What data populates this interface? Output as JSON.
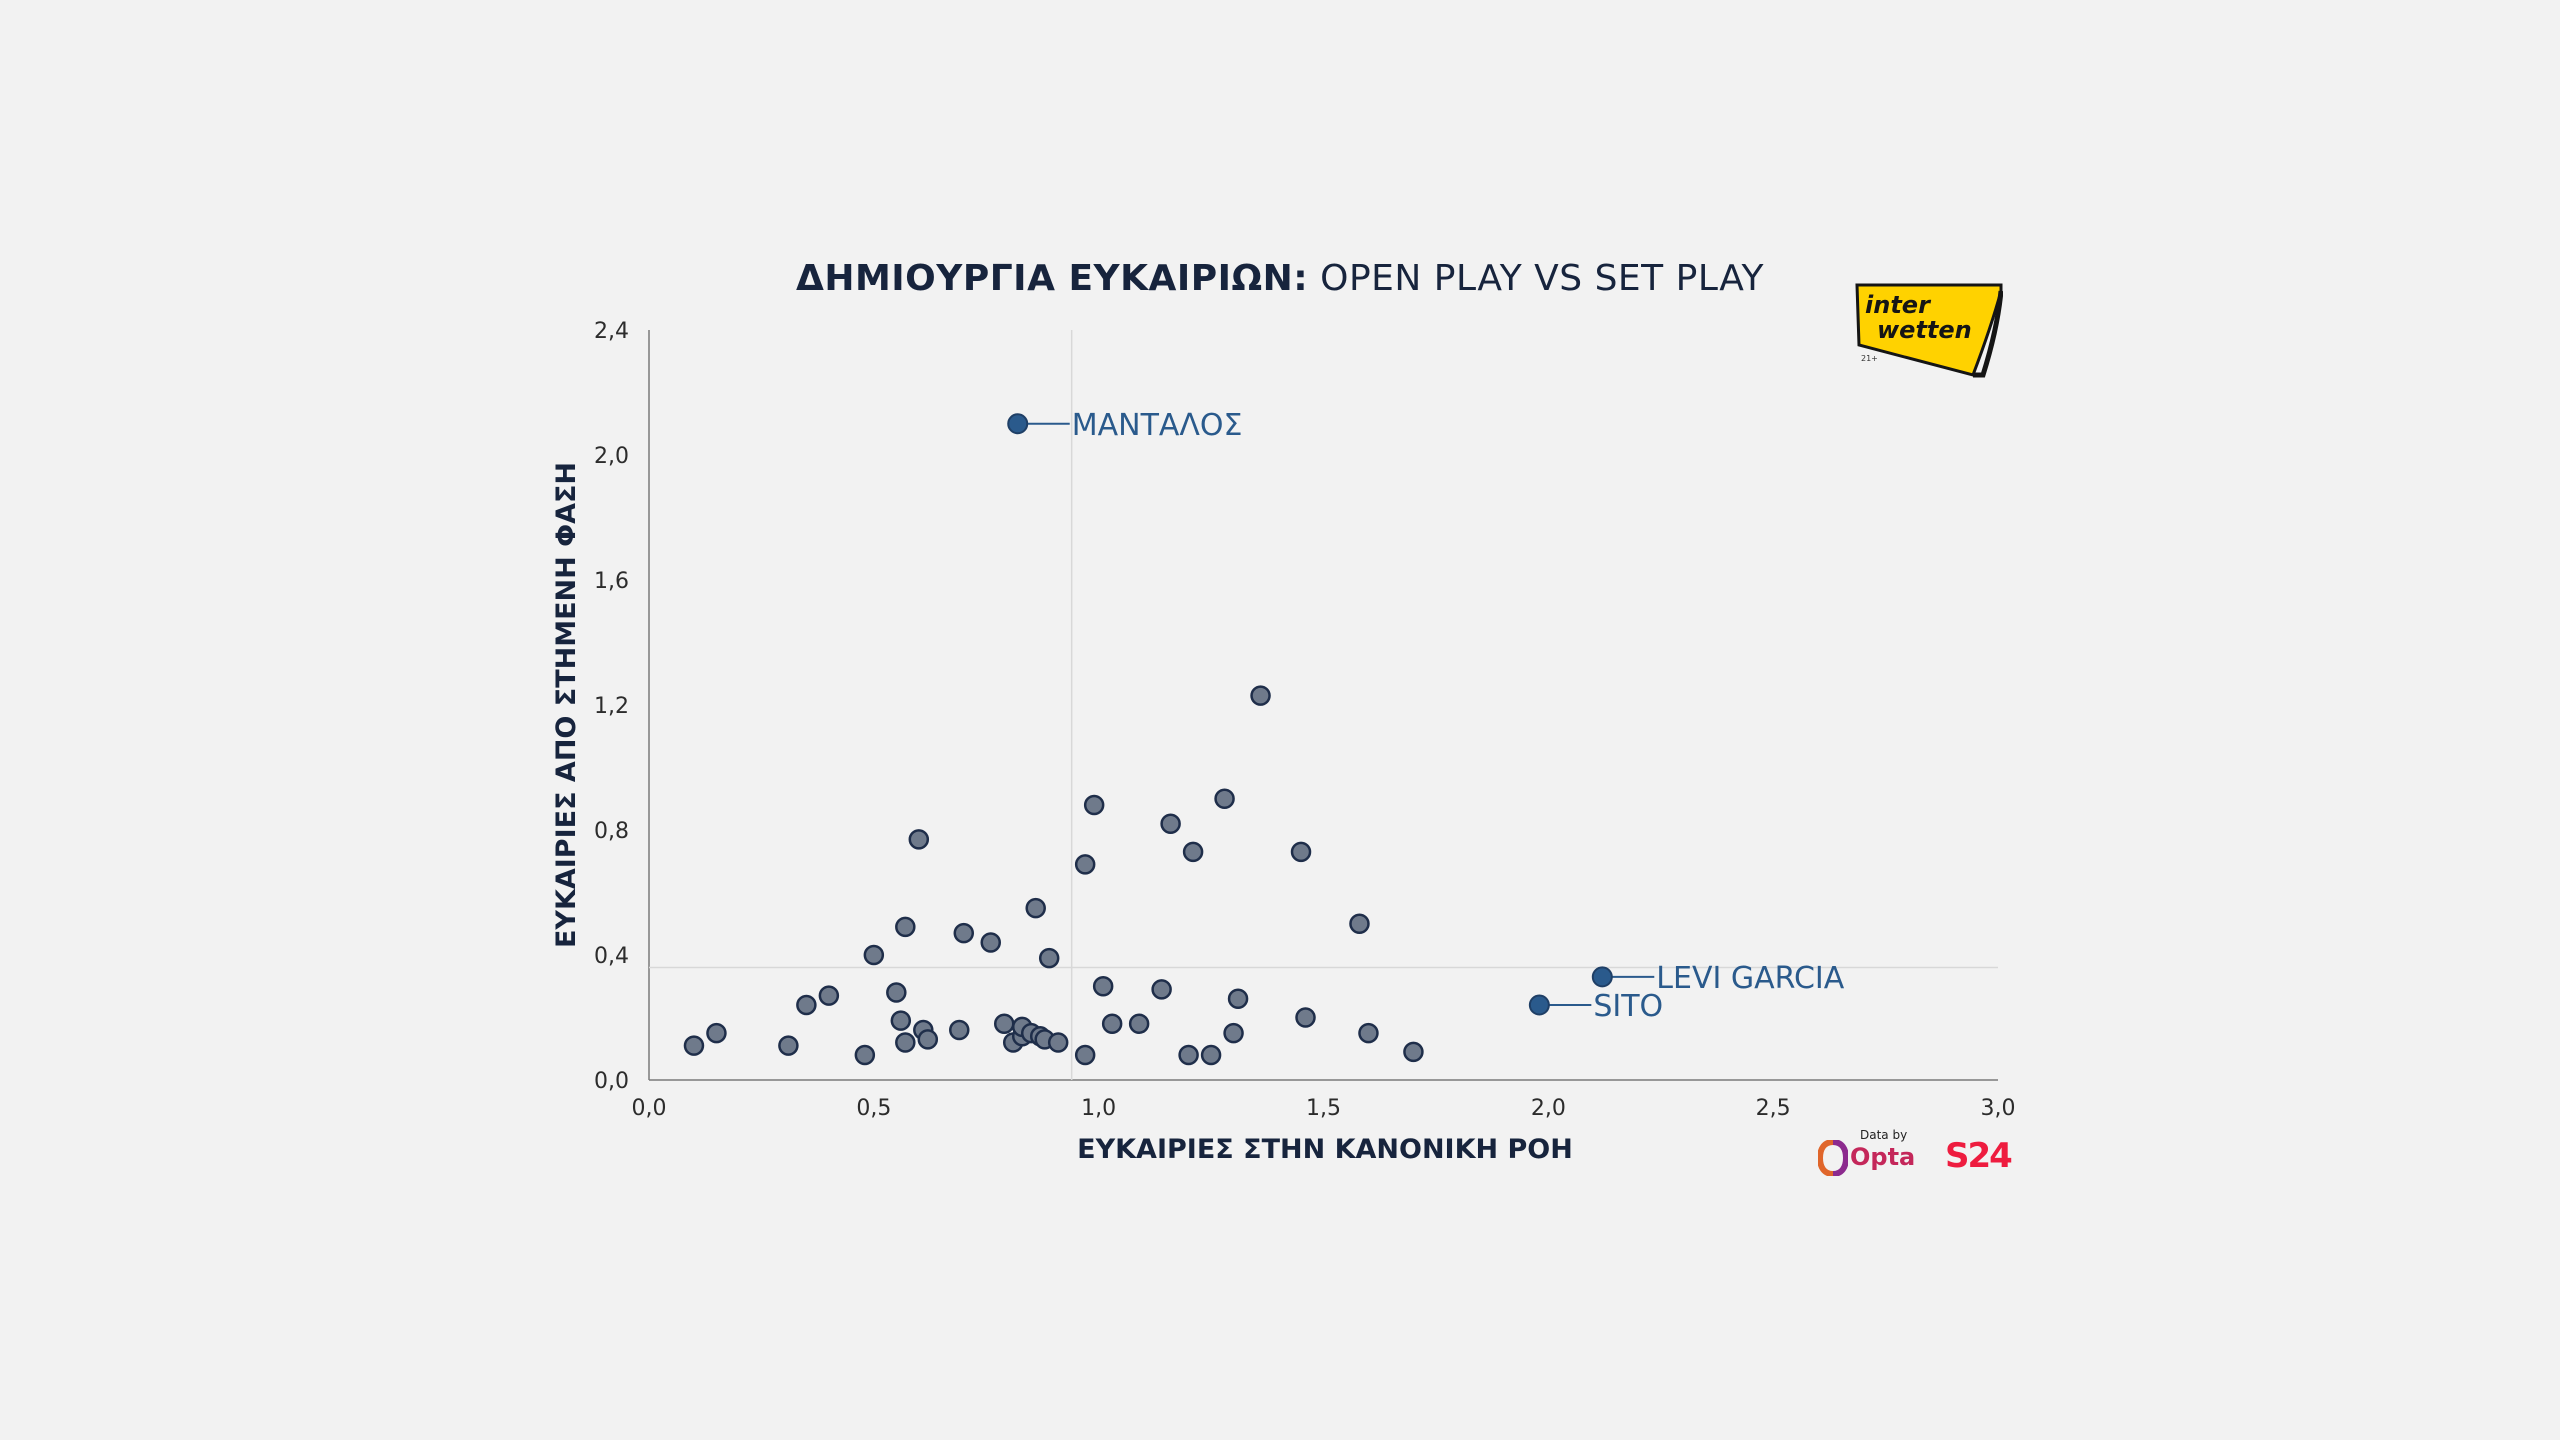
{
  "title": {
    "bold_part": "ΔΗΜΙΟΥΡΓΙΑ ΕΥΚΑΙΡΙΩΝ:",
    "normal_part": "OPEN PLAY VS SET PLAY"
  },
  "brand": {
    "logo_line1": "inter",
    "logo_line2": "wetten",
    "logo_age": "21+",
    "data_by": "Data by",
    "opta": "Opta",
    "s24": "S24"
  },
  "colors": {
    "background": "#f2f2f2",
    "point_fill": "#6f7a8b",
    "point_stroke": "#1f2e4a",
    "highlight": "#2a5a8c",
    "title": "#17243d",
    "ref_line": "#d8d8d8"
  },
  "chart_data": {
    "type": "scatter",
    "title": "ΔΗΜΙΟΥΡΓΙΑ ΕΥΚΑΙΡΙΩΝ: OPEN PLAY VS SET PLAY",
    "xlabel": "ΕΥΚΑΙΡΙΕΣ ΣΤΗΝ ΚΑΝΟΝΙΚΗ ΡΟΗ",
    "ylabel": "ΕΥΚΑΙΡΙΕΣ ΑΠΟ ΣΤΗΜΕΝΗ ΦΑΣΗ",
    "xlim": [
      0,
      3.0
    ],
    "ylim": [
      0,
      2.4
    ],
    "x_ticks": [
      "0,0",
      "0,5",
      "1,0",
      "1,5",
      "2,0",
      "2,5",
      "3,0"
    ],
    "y_ticks": [
      "0,0",
      "0,4",
      "0,8",
      "1,2",
      "1,6",
      "2,0",
      "2,4"
    ],
    "x_tick_values": [
      0,
      0.5,
      1.0,
      1.5,
      2.0,
      2.5,
      3.0
    ],
    "y_tick_values": [
      0,
      0.4,
      0.8,
      1.2,
      1.6,
      2.0,
      2.4
    ],
    "reference_lines": {
      "x": 0.94,
      "y": 0.36
    },
    "grid": false,
    "points": [
      [
        0.1,
        0.11
      ],
      [
        0.15,
        0.15
      ],
      [
        0.31,
        0.11
      ],
      [
        0.35,
        0.24
      ],
      [
        0.4,
        0.27
      ],
      [
        0.48,
        0.08
      ],
      [
        0.5,
        0.4
      ],
      [
        0.55,
        0.28
      ],
      [
        0.56,
        0.19
      ],
      [
        0.57,
        0.12
      ],
      [
        0.57,
        0.49
      ],
      [
        0.6,
        0.77
      ],
      [
        0.61,
        0.16
      ],
      [
        0.62,
        0.13
      ],
      [
        0.69,
        0.16
      ],
      [
        0.7,
        0.47
      ],
      [
        0.76,
        0.44
      ],
      [
        0.79,
        0.18
      ],
      [
        0.81,
        0.12
      ],
      [
        0.83,
        0.14
      ],
      [
        0.83,
        0.17
      ],
      [
        0.85,
        0.15
      ],
      [
        0.86,
        0.55
      ],
      [
        0.87,
        0.14
      ],
      [
        0.88,
        0.13
      ],
      [
        0.89,
        0.39
      ],
      [
        0.91,
        0.12
      ],
      [
        0.97,
        0.08
      ],
      [
        0.97,
        0.69
      ],
      [
        0.99,
        0.88
      ],
      [
        1.01,
        0.3
      ],
      [
        1.03,
        0.18
      ],
      [
        1.09,
        0.18
      ],
      [
        1.14,
        0.29
      ],
      [
        1.16,
        0.82
      ],
      [
        1.2,
        0.08
      ],
      [
        1.21,
        0.73
      ],
      [
        1.25,
        0.08
      ],
      [
        1.28,
        0.9
      ],
      [
        1.3,
        0.15
      ],
      [
        1.31,
        0.26
      ],
      [
        1.36,
        1.23
      ],
      [
        1.45,
        0.73
      ],
      [
        1.46,
        0.2
      ],
      [
        1.58,
        0.5
      ],
      [
        1.6,
        0.15
      ],
      [
        1.7,
        0.09
      ]
    ],
    "highlighted": [
      {
        "name": "ΜΑΝΤΑΛΟΣ",
        "x": 0.82,
        "y": 2.1
      },
      {
        "name": "LEVI GARCIA",
        "x": 2.12,
        "y": 0.33
      },
      {
        "name": "SITO",
        "x": 1.98,
        "y": 0.24
      }
    ]
  }
}
